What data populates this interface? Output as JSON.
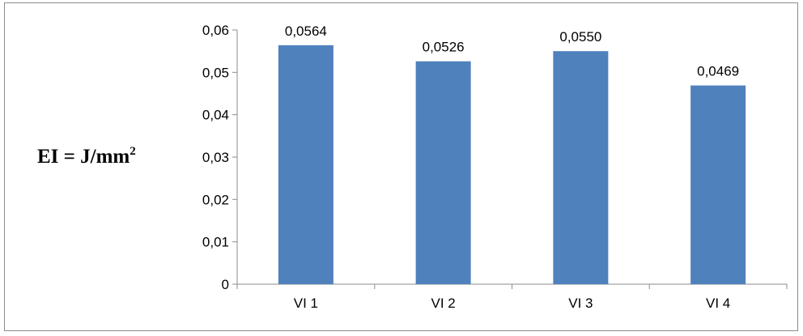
{
  "chart_data": {
    "type": "bar",
    "categories": [
      "VI 1",
      "VI 2",
      "VI 3",
      "VI 4"
    ],
    "values": [
      0.0564,
      0.0526,
      0.055,
      0.0469
    ],
    "data_labels": [
      "0,0564",
      "0,0526",
      "0,0550",
      "0,0469"
    ],
    "ylabel": "EI  = J/mm",
    "ylabel_superscript": "2",
    "xlabel": "",
    "title": "",
    "ylim": [
      0,
      0.06
    ],
    "yticks": [
      0,
      0.01,
      0.02,
      0.03,
      0.04,
      0.05,
      0.06
    ],
    "ytick_labels": [
      "0",
      "0,01",
      "0,02",
      "0,03",
      "0,04",
      "0,05",
      "0,06"
    ],
    "bar_color": "#4f81bd",
    "grid": false,
    "legend": "none"
  }
}
